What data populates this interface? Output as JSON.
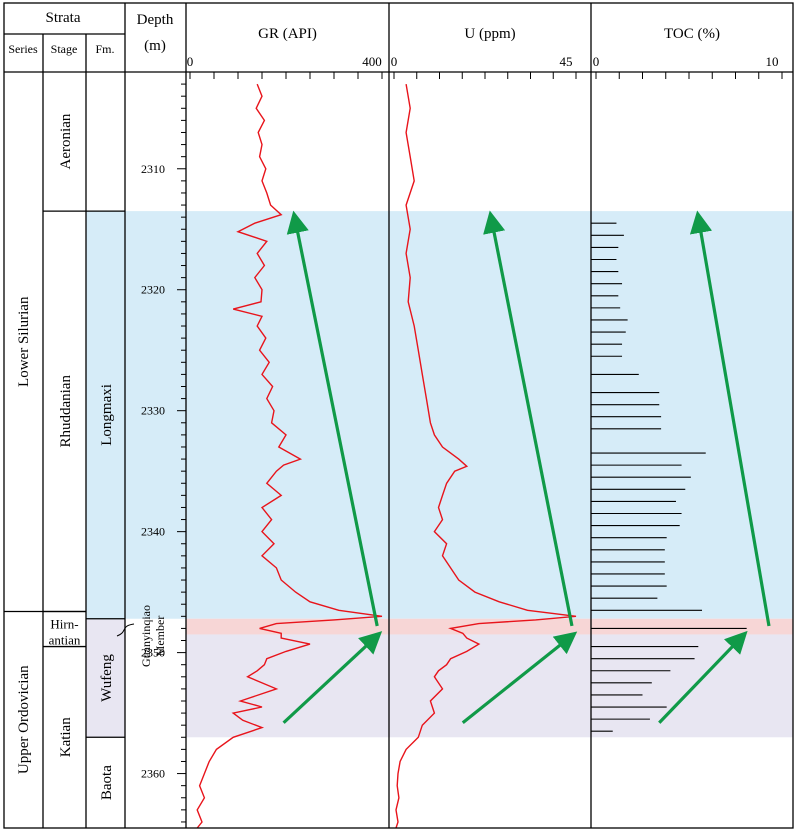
{
  "strata": {
    "header": "Strata",
    "columns": {
      "series": "Series",
      "stage": "Stage",
      "formation": "Fm."
    },
    "series": [
      {
        "label": "Lower Silurian",
        "top": 2302,
        "base": 2346.6
      },
      {
        "label": "Upper Ordovician",
        "top": 2346.6,
        "base": 2364.5
      }
    ],
    "stages": [
      {
        "label": "Aeronian",
        "top": 2302,
        "base": 2313.5
      },
      {
        "label": "Rhuddanian",
        "top": 2313.5,
        "base": 2346.6
      },
      {
        "label": "Hirn-",
        "label2": "antian",
        "top": 2346.6,
        "base": 2349.5
      },
      {
        "label": "Katian",
        "top": 2349.5,
        "base": 2364.5
      }
    ],
    "formations": [
      {
        "label": "",
        "top": 2302,
        "base": 2313.5
      },
      {
        "label": "Longmaxi",
        "top": 2313.5,
        "base": 2347.2
      },
      {
        "label": "Wufeng",
        "top": 2347.2,
        "base": 2357.0
      },
      {
        "label": "Baota",
        "top": 2357.0,
        "base": 2364.5
      }
    ],
    "member": {
      "line1": "Guanyinqiao",
      "line2": "Member"
    }
  },
  "depth_axis": {
    "title_line1": "Depth",
    "title_line2": "(m)",
    "top": 2302,
    "base": 2364.5,
    "ticks": [
      "2310",
      "2320",
      "2330",
      "2340",
      "2350",
      "2360"
    ]
  },
  "chart_data": [
    {
      "type": "line",
      "title": "GR (API)",
      "xlim": [
        0,
        400
      ],
      "tick_labels": [
        "0",
        "400"
      ],
      "color": "#e8141b",
      "y": [
        2303,
        2304,
        2305,
        2306,
        2307,
        2308,
        2309,
        2310,
        2311,
        2312,
        2313,
        2313.8,
        2314.5,
        2315.2,
        2316,
        2317,
        2318,
        2319,
        2320,
        2321,
        2321.6,
        2322.2,
        2323,
        2324,
        2325,
        2326,
        2327,
        2328,
        2329,
        2330,
        2331,
        2332,
        2333,
        2334,
        2334.5,
        2335,
        2336,
        2337,
        2338,
        2339,
        2340,
        2341,
        2342,
        2343,
        2344,
        2345,
        2345.8,
        2346.5,
        2347.0,
        2347.3,
        2347.6,
        2348.0,
        2348.4,
        2348.8,
        2349.3,
        2349.9,
        2350.5,
        2351.0,
        2351.5,
        2352,
        2353,
        2354,
        2354.5,
        2355,
        2355.6,
        2356.2,
        2357,
        2358,
        2359,
        2360,
        2361,
        2362,
        2363,
        2364,
        2364.5
      ],
      "values": [
        140,
        150,
        138,
        155,
        142,
        150,
        145,
        158,
        150,
        160,
        168,
        190,
        135,
        100,
        160,
        140,
        155,
        135,
        150,
        148,
        90,
        150,
        140,
        158,
        145,
        165,
        150,
        172,
        160,
        175,
        170,
        200,
        185,
        230,
        195,
        180,
        160,
        190,
        150,
        170,
        150,
        175,
        150,
        180,
        190,
        220,
        250,
        310,
        400,
        300,
        180,
        145,
        190,
        190,
        250,
        200,
        160,
        155,
        140,
        120,
        180,
        105,
        150,
        90,
        110,
        150,
        90,
        55,
        40,
        30,
        20,
        30,
        15,
        25,
        15
      ]
    },
    {
      "type": "line",
      "title": "U (ppm)",
      "xlim": [
        0,
        45
      ],
      "tick_labels": [
        "0",
        "45"
      ],
      "color": "#e8141b",
      "y": [
        2303,
        2305,
        2307,
        2309,
        2311,
        2313,
        2315,
        2317,
        2319,
        2321,
        2323,
        2325,
        2327,
        2329,
        2331,
        2332,
        2333,
        2334,
        2334.6,
        2335,
        2336,
        2337,
        2338,
        2339,
        2340,
        2341,
        2342,
        2343,
        2344,
        2345,
        2345.8,
        2346.5,
        2347.0,
        2347.3,
        2347.6,
        2348.0,
        2348.4,
        2348.8,
        2349.3,
        2349.9,
        2350.5,
        2351.0,
        2351.5,
        2352,
        2353,
        2354,
        2355,
        2356,
        2357,
        2358,
        2359,
        2360,
        2361,
        2362,
        2363,
        2364,
        2364.5
      ],
      "values": [
        3,
        4,
        3,
        4,
        5,
        3,
        4,
        3,
        4,
        3.5,
        5,
        6,
        7,
        8,
        9,
        10,
        12,
        16,
        18,
        15,
        13,
        12,
        11,
        12,
        10,
        13,
        12,
        14,
        16,
        20,
        26,
        33,
        45,
        35,
        21,
        14,
        17,
        18,
        21,
        18,
        14,
        13,
        11,
        10,
        12,
        9,
        10,
        7,
        6,
        3,
        1.5,
        1,
        0.8,
        1.2,
        0.5,
        1,
        0.5
      ]
    },
    {
      "type": "bar",
      "title": "TOC (%)",
      "xlim": [
        0,
        10
      ],
      "tick_labels": [
        "0",
        "10"
      ],
      "color": "#000000",
      "y": [
        2314.5,
        2315.5,
        2316.5,
        2317.5,
        2318.5,
        2319.5,
        2320.5,
        2321.5,
        2322.5,
        2323.5,
        2324.5,
        2325.5,
        2327.0,
        2328.5,
        2329.5,
        2330.5,
        2331.5,
        2333.5,
        2334.5,
        2335.5,
        2336.5,
        2337.5,
        2338.5,
        2339.5,
        2340.5,
        2341.5,
        2342.5,
        2343.5,
        2344.5,
        2345.5,
        2346.5,
        2348.0,
        2349.5,
        2350.5,
        2351.5,
        2352.5,
        2353.5,
        2354.5,
        2355.5,
        2356.5
      ],
      "values": [
        1.1,
        1.5,
        1.2,
        1.1,
        1.2,
        1.4,
        1.2,
        1.3,
        1.7,
        1.6,
        1.4,
        1.4,
        2.3,
        3.4,
        3.4,
        3.5,
        3.5,
        5.9,
        4.6,
        5.1,
        4.8,
        4.3,
        4.6,
        4.5,
        3.8,
        3.7,
        3.7,
        3.7,
        3.8,
        3.3,
        5.7,
        8.1,
        5.5,
        5.3,
        4.0,
        3.0,
        2.5,
        3.8,
        2.9,
        0.9
      ]
    }
  ],
  "zones": [
    {
      "name": "Longmaxi",
      "top": 2313.5,
      "base": 2347.2,
      "color": "#d6ecf8"
    },
    {
      "name": "Guanyinqiao",
      "top": 2347.2,
      "base": 2348.5,
      "color": "#f7d6d6"
    },
    {
      "name": "Wufeng",
      "top": 2348.5,
      "base": 2357.0,
      "color": "#e8e6f2"
    }
  ],
  "trend_arrows": {
    "color": "#109a48",
    "tracks": [
      {
        "upper": {
          "from": [
            390,
            2347.8
          ],
          "to": [
            218,
            2314.0
          ]
        },
        "lower": {
          "from": [
            195,
            2355.8
          ],
          "to": [
            390,
            2348.6
          ]
        }
      },
      {
        "upper": {
          "from": [
            44,
            2347.8
          ],
          "to": [
            24,
            2314.0
          ]
        },
        "lower": {
          "from": [
            17,
            2355.8
          ],
          "to": [
            44,
            2348.6
          ]
        }
      },
      {
        "upper": {
          "from": [
            9.3,
            2347.8
          ],
          "to": [
            5.5,
            2314.0
          ]
        },
        "lower": {
          "from": [
            3.4,
            2355.8
          ],
          "to": [
            7.9,
            2348.6
          ]
        }
      }
    ]
  }
}
